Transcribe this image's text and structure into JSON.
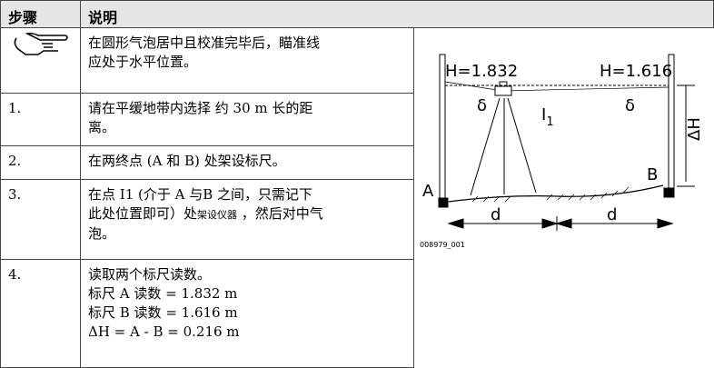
{
  "table": {
    "header": [
      "步骤",
      "说明"
    ],
    "rows": [
      {
        "lines": [
          "在圆形气泡居中且校准完毕后，瞄准线",
          "应处于水平位置。"
        ]
      },
      {
        "step": "1.",
        "lines": [
          "请在平缓地带内选择 约 30 m 长的距",
          "离。"
        ]
      },
      {
        "step": "2.",
        "lines": [
          "在两终点 (A 和 B) 处架设标尺。"
        ]
      },
      {
        "step": "3.",
        "lines": [
          "在点 I1 (介于 A 与B 之间，只需记下",
          "此处位置即可）处",
          "架设仪器",
          " ，然后对中气",
          "泡。"
        ]
      },
      {
        "step": "4.",
        "lines": [
          "读取两个标尺读数。",
          "标尺 A 读数 = 1.832 m",
          "标尺 B 读数 = 1.616 m",
          "ΔH = A - B = 0.216 m"
        ]
      }
    ]
  },
  "figure": {
    "left_reading": "H=1.832",
    "right_reading": "H=1.616",
    "delta_left": "δ",
    "delta_right": "δ",
    "instrument": "I",
    "instrument_sub": "1",
    "height_diff": "ΔH",
    "point_a": "A",
    "point_b": "B",
    "dist_left": "d",
    "dist_right": "d",
    "figure_id": "008979_001"
  }
}
